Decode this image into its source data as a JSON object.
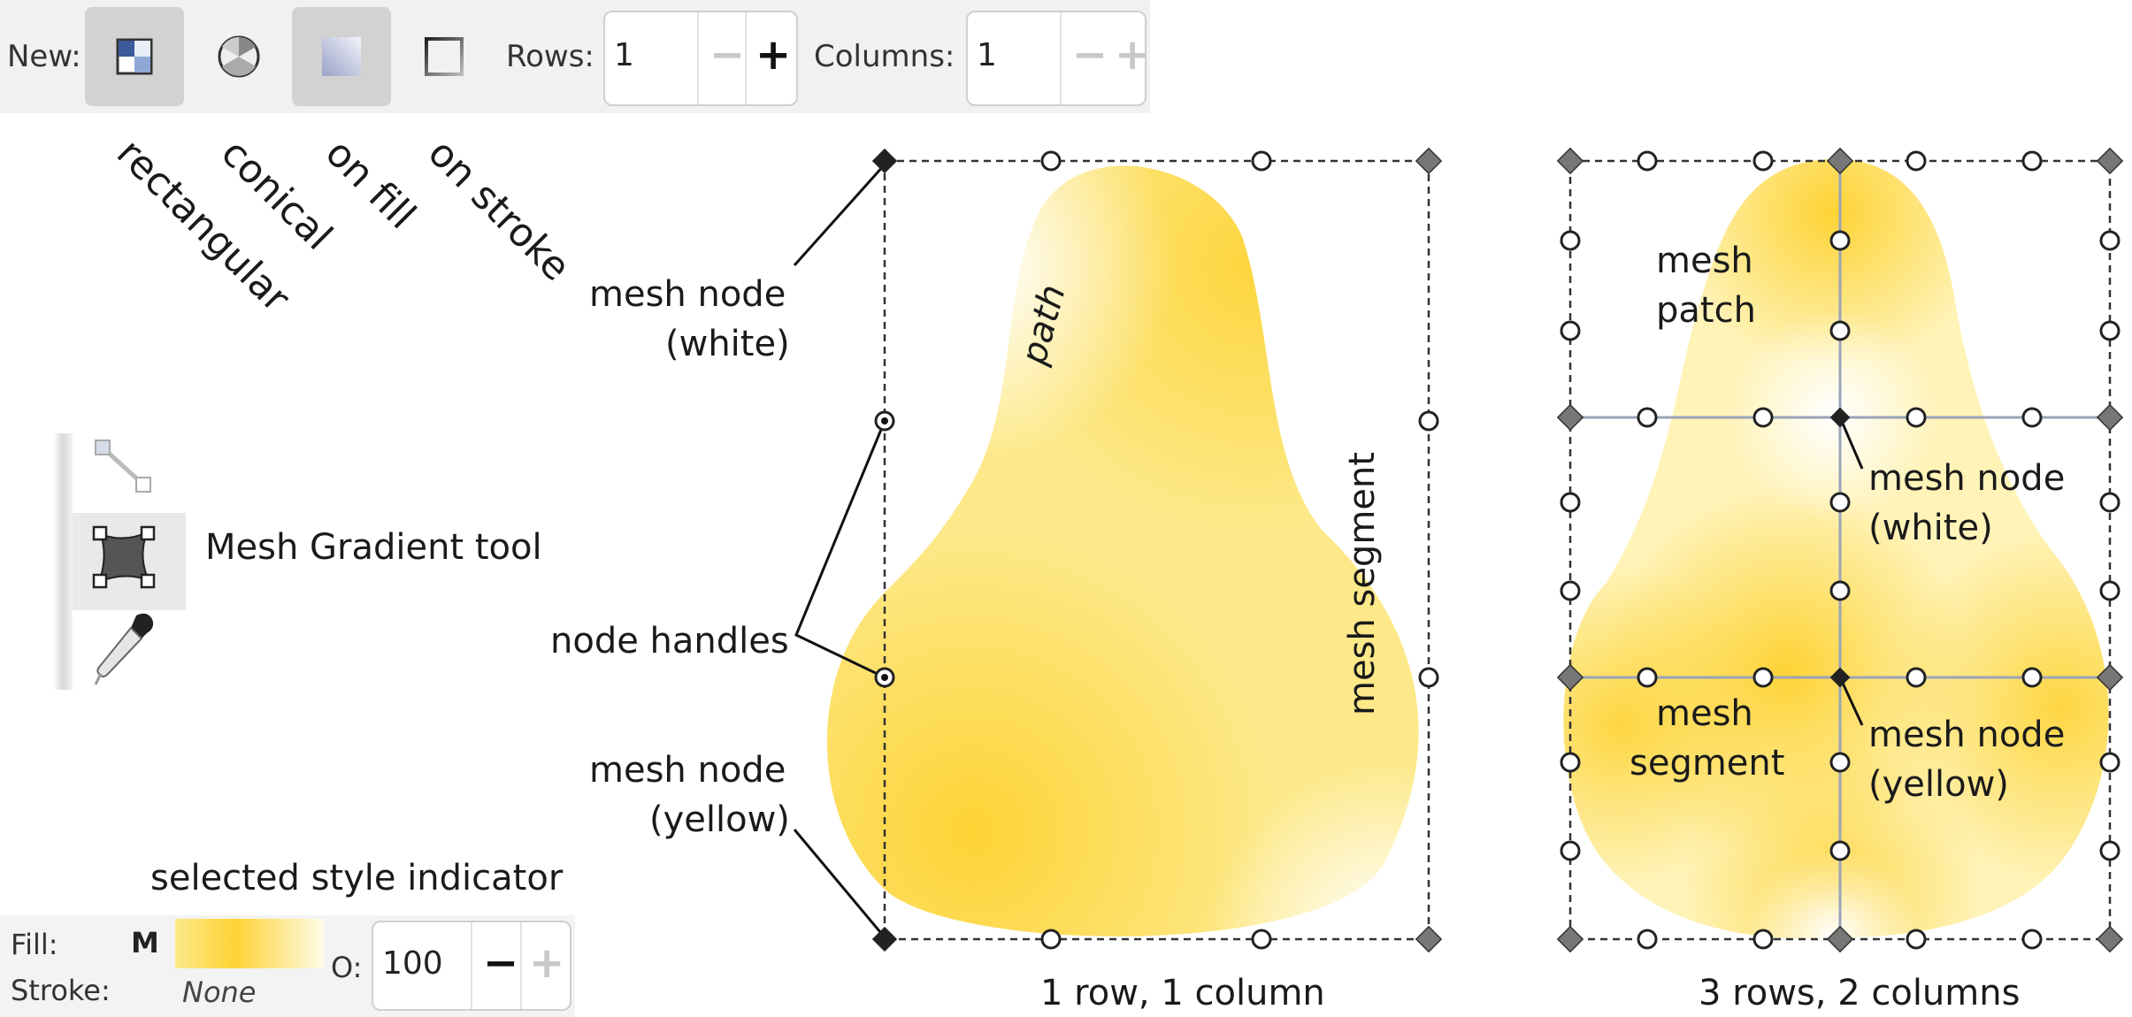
{
  "toolbar": {
    "new_label": "New:",
    "rows_label": "Rows:",
    "rows_value": "1",
    "columns_label": "Columns:",
    "columns_value": "1",
    "minus": "−",
    "plus": "+",
    "button_labels": [
      "rectangular",
      "conical",
      "on fill",
      "on stroke"
    ]
  },
  "tool": {
    "name": "Mesh Gradient tool"
  },
  "annotations": {
    "mesh_node_white_1": "mesh node",
    "mesh_node_white_2": "(white)",
    "node_handles": "node handles",
    "mesh_node_yellow_1": "mesh node",
    "mesh_node_yellow_2": "(yellow)",
    "path": "path",
    "mesh_segment": "mesh segment",
    "selected_style_indicator": "selected style indicator",
    "right_patch_1": "mesh",
    "right_patch_2": "patch",
    "right_node_white_1": "mesh node",
    "right_node_white_2": "(white)",
    "right_segment_1": "mesh",
    "right_segment_2": "segment",
    "right_node_yellow_1": "mesh node",
    "right_node_yellow_2": "(yellow)"
  },
  "captions": {
    "left": "1 row,  1 column",
    "right": "3 rows,  2 columns"
  },
  "stylebar": {
    "fill_label": "Fill:",
    "fill_value": "M",
    "stroke_label": "Stroke:",
    "stroke_value": "None",
    "opacity_label": "O:",
    "opacity_value": "100",
    "minus": "−",
    "plus": "+"
  },
  "colors": {
    "yellow": "#fdd335",
    "white": "#ffffff",
    "line": "#111111",
    "grid": "#9aa3b8"
  }
}
